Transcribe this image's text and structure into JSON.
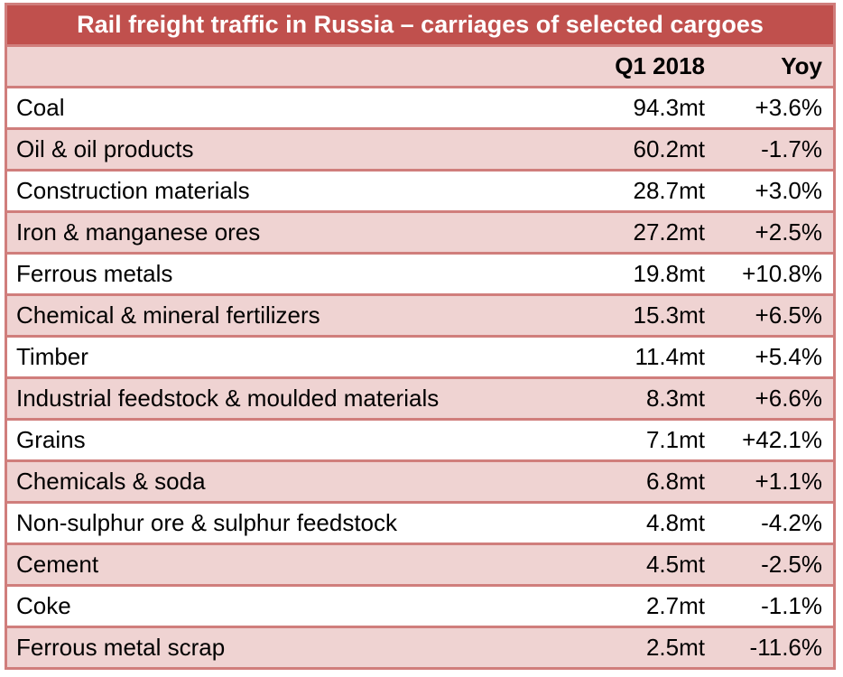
{
  "table": {
    "title": "Rail freight traffic in Russia – carriages of selected cargoes",
    "columns": [
      "",
      "Q1 2018",
      "Yoy"
    ],
    "rows": [
      {
        "cargo": "Coal",
        "q1_2018": "94.3mt",
        "yoy": "+3.6%"
      },
      {
        "cargo": "Oil & oil products",
        "q1_2018": "60.2mt",
        "yoy": "-1.7%"
      },
      {
        "cargo": "Construction materials",
        "q1_2018": "28.7mt",
        "yoy": "+3.0%"
      },
      {
        "cargo": "Iron & manganese ores",
        "q1_2018": "27.2mt",
        "yoy": "+2.5%"
      },
      {
        "cargo": "Ferrous metals",
        "q1_2018": "19.8mt",
        "yoy": "+10.8%"
      },
      {
        "cargo": "Chemical & mineral fertilizers",
        "q1_2018": "15.3mt",
        "yoy": "+6.5%"
      },
      {
        "cargo": "Timber",
        "q1_2018": "11.4mt",
        "yoy": "+5.4%"
      },
      {
        "cargo": "Industrial feedstock & moulded materials",
        "q1_2018": "8.3mt",
        "yoy": "+6.6%"
      },
      {
        "cargo": "Grains",
        "q1_2018": "7.1mt",
        "yoy": "+42.1%"
      },
      {
        "cargo": "Chemicals & soda",
        "q1_2018": "6.8mt",
        "yoy": "+1.1%"
      },
      {
        "cargo": "Non-sulphur ore & sulphur feedstock",
        "q1_2018": "4.8mt",
        "yoy": "-4.2%"
      },
      {
        "cargo": "Cement",
        "q1_2018": "4.5mt",
        "yoy": "-2.5%"
      },
      {
        "cargo": "Coke",
        "q1_2018": "2.7mt",
        "yoy": "-1.1%"
      },
      {
        "cargo": "Ferrous metal scrap",
        "q1_2018": "2.5mt",
        "yoy": "-11.6%"
      }
    ]
  },
  "colors": {
    "title_bg": "#c0504d",
    "border": "#d07e7c",
    "band": "#efd3d2",
    "white": "#ffffff"
  }
}
